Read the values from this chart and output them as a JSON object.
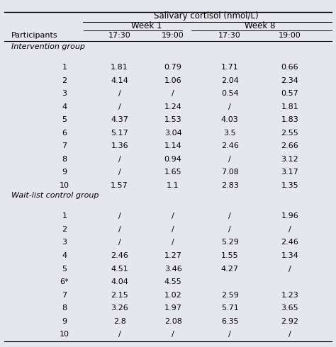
{
  "title_top": "Salivary cortisol (nmol/L)",
  "week1_header": "Week 1",
  "week8_header": "Week 8",
  "group1_label": "Intervention group",
  "group2_label": "Wait-list control group",
  "intervention_rows": [
    [
      "1",
      "1.81",
      "0.79",
      "1.71",
      "0.66"
    ],
    [
      "2",
      "4.14",
      "1.06",
      "2.04",
      "2.34"
    ],
    [
      "3",
      "/",
      "/",
      "0.54",
      "0.57"
    ],
    [
      "4",
      "/",
      "1.24",
      "/",
      "1.81"
    ],
    [
      "5",
      "4.37",
      "1.53",
      "4.03",
      "1.83"
    ],
    [
      "6",
      "5.17",
      "3.04",
      "3.5",
      "2.55"
    ],
    [
      "7",
      "1.36",
      "1.14",
      "2.46",
      "2.66"
    ],
    [
      "8",
      "/",
      "0.94",
      "/",
      "3.12"
    ],
    [
      "9",
      "/",
      "1.65",
      "7.08",
      "3.17"
    ],
    [
      "10",
      "1.57",
      "1.1",
      "2.83",
      "1.35"
    ]
  ],
  "control_rows": [
    [
      "1",
      "/",
      "/",
      "/",
      "1.96"
    ],
    [
      "2",
      "/",
      "/",
      "/",
      "/"
    ],
    [
      "3",
      "/",
      "/",
      "5.29",
      "2.46"
    ],
    [
      "4",
      "2.46",
      "1.27",
      "1.55",
      "1.34"
    ],
    [
      "5",
      "4.51",
      "3.46",
      "4.27",
      "/"
    ],
    [
      "6*",
      "4.04",
      "4.55",
      "",
      ""
    ],
    [
      "7",
      "2.15",
      "1.02",
      "2.59",
      "1.23"
    ],
    [
      "8",
      "3.26",
      "1.97",
      "5.71",
      "3.65"
    ],
    [
      "9",
      "2.8",
      "2.08",
      "6.35",
      "2.92"
    ],
    [
      "10",
      "/",
      "/",
      "/",
      "/"
    ]
  ],
  "bg_color": "#e6e6ee",
  "font_size": 8.0,
  "title_font_size": 8.5
}
